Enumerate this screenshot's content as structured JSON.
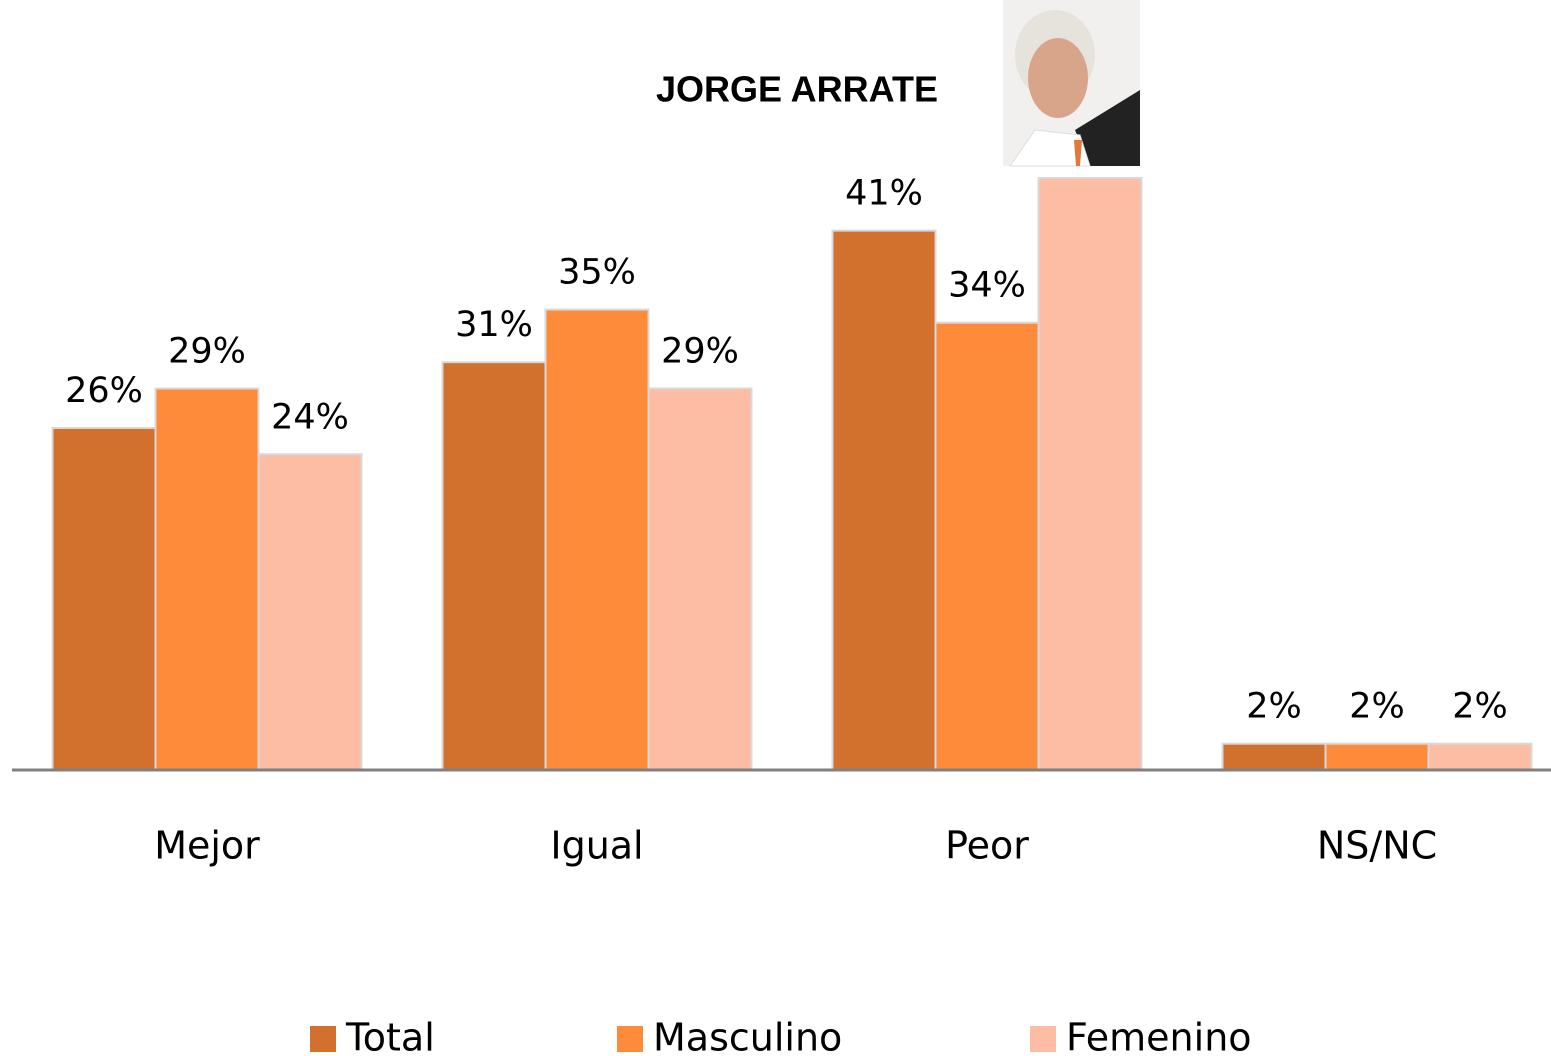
{
  "chart_data": {
    "type": "bar",
    "title": "JORGE ARRATE",
    "categories": [
      "Mejor",
      "Igual",
      "Peor",
      "NS/NC"
    ],
    "series": [
      {
        "name": "Total",
        "color": "#d2702e",
        "values": [
          26,
          31,
          41,
          2
        ],
        "value_labels": [
          "26%",
          "31%",
          "41%",
          "2%"
        ]
      },
      {
        "name": "Masculino",
        "color": "#fd8b3a",
        "values": [
          29,
          35,
          34,
          2
        ],
        "value_labels": [
          "29%",
          "35%",
          "34%",
          "2%"
        ]
      },
      {
        "name": "Femenino",
        "color": "#fcbda4",
        "values": [
          24,
          29,
          45,
          2
        ],
        "value_labels": [
          "24%",
          "29%",
          null,
          "2%"
        ]
      }
    ],
    "ylim": [
      0,
      45
    ]
  }
}
